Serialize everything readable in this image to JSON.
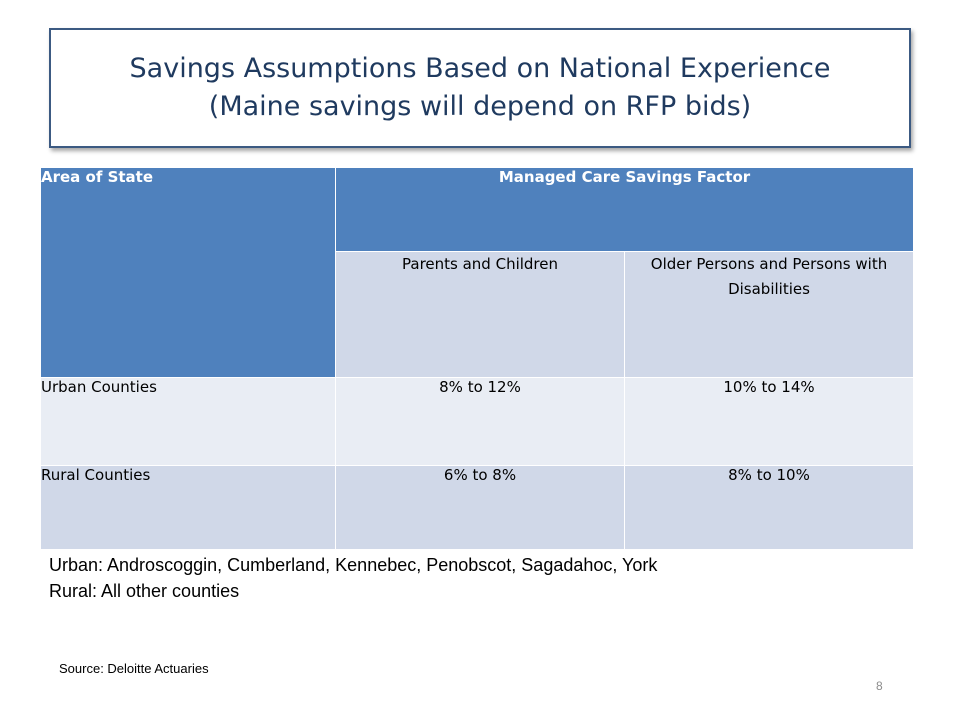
{
  "title": {
    "line1": "Savings Assumptions Based on National Experience",
    "line2": "(Maine savings will depend on RFP bids)"
  },
  "table": {
    "header_area": "Area of State",
    "header_factor": "Managed Care Savings Factor",
    "sub_col1": "Parents and Children",
    "sub_col2": "Older Persons and Persons with Disabilities",
    "rows": [
      {
        "area": "Urban Counties",
        "parents_children": "8% to 12%",
        "older_disabilities": "10% to 14%"
      },
      {
        "area": "Rural Counties",
        "parents_children": "6% to 8%",
        "older_disabilities": "8% to 10%"
      }
    ]
  },
  "notes": {
    "urban": "Urban:  Androscoggin, Cumberland, Kennebec, Penobscot, Sagadahoc, York",
    "rural": "Rural:  All other counties"
  },
  "source": "Source:  Deloitte Actuaries",
  "page_number": "8",
  "colors": {
    "header_blue": "#4f81bd",
    "band_light": "#e9edf4",
    "band_mid": "#d0d8e8",
    "title_text": "#1f3a5f"
  }
}
